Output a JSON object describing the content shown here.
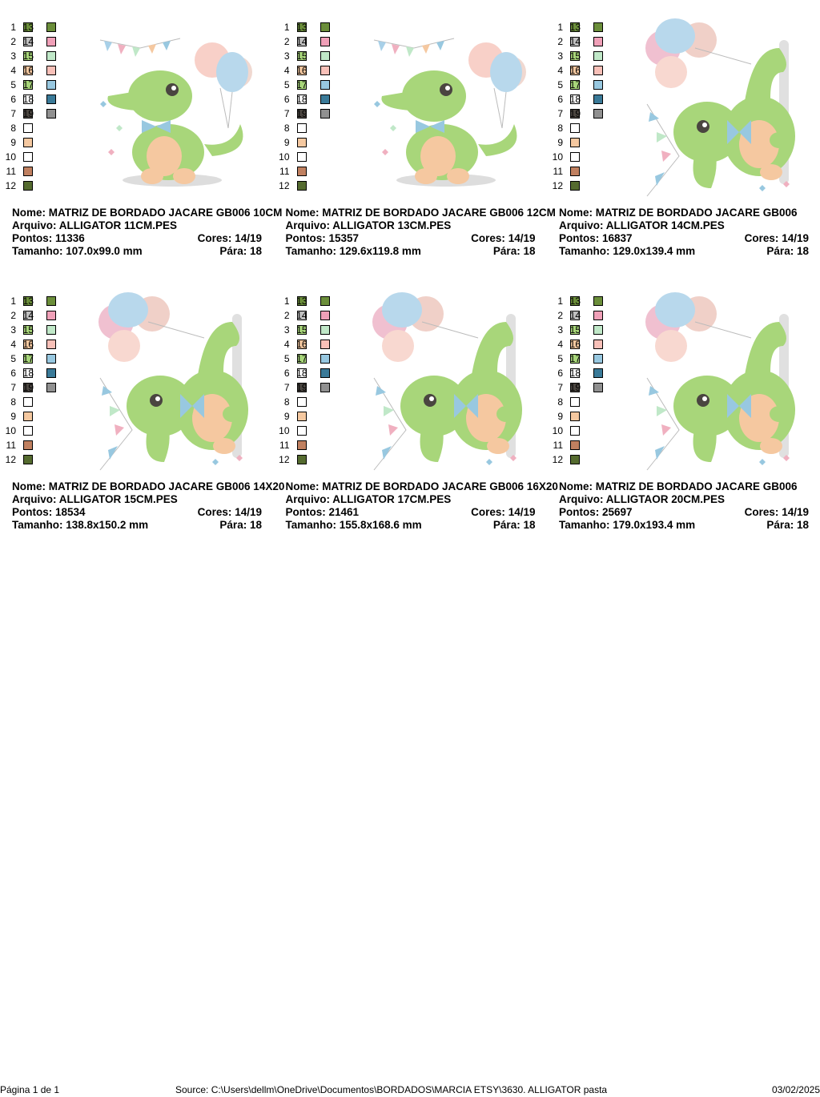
{
  "labels": {
    "name": "Nome:",
    "file": "Arquivo:",
    "stitches": "Pontos:",
    "colors": "Cores:",
    "size": "Tamanho:",
    "stops": "Pára:"
  },
  "swatches": [
    {
      "n": "1",
      "color": "#6b8e3a"
    },
    {
      "n": "2",
      "color": "#c0c0c0"
    },
    {
      "n": "3",
      "color": "#a8d67a"
    },
    {
      "n": "4",
      "color": "#f5c8a0"
    },
    {
      "n": "5",
      "color": "#a8d67a"
    },
    {
      "n": "6",
      "color": "#ffffff"
    },
    {
      "n": "7",
      "color": "#4a4540"
    },
    {
      "n": "8",
      "color": "#ffffff"
    },
    {
      "n": "9",
      "color": "#f5c8a0"
    },
    {
      "n": "10",
      "color": "#ffffff"
    },
    {
      "n": "11",
      "color": "#c08060"
    },
    {
      "n": "12",
      "color": "#556b2f"
    },
    {
      "n": "13",
      "color": "#6b8e3a"
    },
    {
      "n": "14",
      "color": "#f0a0b8"
    },
    {
      "n": "15",
      "color": "#c0e8c8"
    },
    {
      "n": "16",
      "color": "#f8c0b8"
    },
    {
      "n": "17",
      "color": "#98c8e0"
    },
    {
      "n": "18",
      "color": "#3a7a98"
    },
    {
      "n": "19",
      "color": "#909090"
    }
  ],
  "designs": [
    {
      "name": "MATRIZ DE BORDADO  JACARE GB006 10CM",
      "file": "ALLIGATOR 11CM.PES",
      "stitches": "11336",
      "colors": "14/19",
      "size": "107.0x99.0 mm",
      "stops": "18",
      "pose": "sitting"
    },
    {
      "name": "MATRIZ DE BORDADO  JACARE GB006 12CM",
      "file": "ALLIGATOR 13CM.PES",
      "stitches": "15357",
      "colors": "14/19",
      "size": "129.6x119.8 mm",
      "stops": "18",
      "pose": "sitting"
    },
    {
      "name": "MATRIZ DE BORDADO  JACARE GB006",
      "file": "ALLIGATOR 14CM.PES",
      "stitches": "16837",
      "colors": "14/19",
      "size": "129.0x139.4 mm",
      "stops": "18",
      "pose": "standing"
    },
    {
      "name": "MATRIZ DE BORDADO  JACARE GB006 14X20",
      "file": "ALLIGATOR 15CM.PES",
      "stitches": "18534",
      "colors": "14/19",
      "size": "138.8x150.2 mm",
      "stops": "18",
      "pose": "standing"
    },
    {
      "name": "MATRIZ DE BORDADO  JACARE GB006 16X20",
      "file": "ALLIGATOR 17CM.PES",
      "stitches": "21461",
      "colors": "14/19",
      "size": "155.8x168.6 mm",
      "stops": "18",
      "pose": "standing"
    },
    {
      "name": "MATRIZ DE BORDADO  JACARE GB006",
      "file": "ALLIGTAOR 20CM.PES",
      "stitches": "25697",
      "colors": "14/19",
      "size": "179.0x193.4 mm",
      "stops": "18",
      "pose": "standing"
    }
  ],
  "footer": {
    "page": "Página 1 de 1",
    "source": "Source: C:\\Users\\dellm\\OneDrive\\Documentos\\BORDADOS\\MARCIA ETSY\\3630. ALLIGATOR pasta",
    "date": "03/02/2025"
  }
}
